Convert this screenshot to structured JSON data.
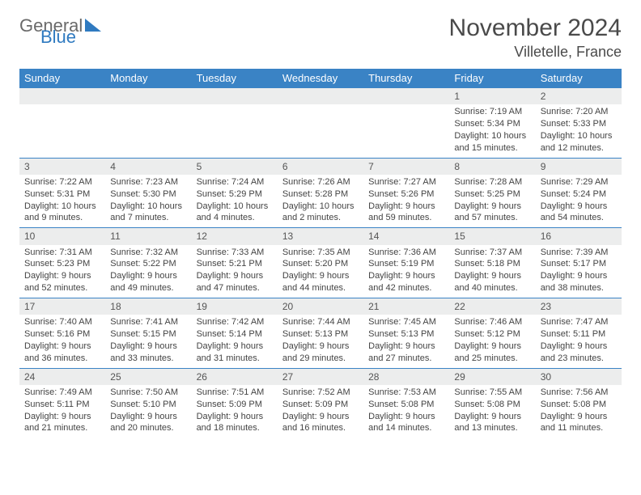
{
  "logo": {
    "general": "General",
    "blue": "Blue"
  },
  "header": {
    "title": "November 2024",
    "location": "Villetelle, France"
  },
  "colors": {
    "header_bg": "#3a83c5",
    "header_text": "#ffffff",
    "daynum_bg": "#eceded",
    "border": "#3a83c5",
    "text": "#444444",
    "logo_general": "#6a6a6a",
    "logo_blue": "#2f7ac0"
  },
  "columns": [
    "Sunday",
    "Monday",
    "Tuesday",
    "Wednesday",
    "Thursday",
    "Friday",
    "Saturday"
  ],
  "weeks": [
    [
      null,
      null,
      null,
      null,
      null,
      {
        "n": "1",
        "sr": "7:19 AM",
        "ss": "5:34 PM",
        "dl": "10 hours and 15 minutes."
      },
      {
        "n": "2",
        "sr": "7:20 AM",
        "ss": "5:33 PM",
        "dl": "10 hours and 12 minutes."
      }
    ],
    [
      {
        "n": "3",
        "sr": "7:22 AM",
        "ss": "5:31 PM",
        "dl": "10 hours and 9 minutes."
      },
      {
        "n": "4",
        "sr": "7:23 AM",
        "ss": "5:30 PM",
        "dl": "10 hours and 7 minutes."
      },
      {
        "n": "5",
        "sr": "7:24 AM",
        "ss": "5:29 PM",
        "dl": "10 hours and 4 minutes."
      },
      {
        "n": "6",
        "sr": "7:26 AM",
        "ss": "5:28 PM",
        "dl": "10 hours and 2 minutes."
      },
      {
        "n": "7",
        "sr": "7:27 AM",
        "ss": "5:26 PM",
        "dl": "9 hours and 59 minutes."
      },
      {
        "n": "8",
        "sr": "7:28 AM",
        "ss": "5:25 PM",
        "dl": "9 hours and 57 minutes."
      },
      {
        "n": "9",
        "sr": "7:29 AM",
        "ss": "5:24 PM",
        "dl": "9 hours and 54 minutes."
      }
    ],
    [
      {
        "n": "10",
        "sr": "7:31 AM",
        "ss": "5:23 PM",
        "dl": "9 hours and 52 minutes."
      },
      {
        "n": "11",
        "sr": "7:32 AM",
        "ss": "5:22 PM",
        "dl": "9 hours and 49 minutes."
      },
      {
        "n": "12",
        "sr": "7:33 AM",
        "ss": "5:21 PM",
        "dl": "9 hours and 47 minutes."
      },
      {
        "n": "13",
        "sr": "7:35 AM",
        "ss": "5:20 PM",
        "dl": "9 hours and 44 minutes."
      },
      {
        "n": "14",
        "sr": "7:36 AM",
        "ss": "5:19 PM",
        "dl": "9 hours and 42 minutes."
      },
      {
        "n": "15",
        "sr": "7:37 AM",
        "ss": "5:18 PM",
        "dl": "9 hours and 40 minutes."
      },
      {
        "n": "16",
        "sr": "7:39 AM",
        "ss": "5:17 PM",
        "dl": "9 hours and 38 minutes."
      }
    ],
    [
      {
        "n": "17",
        "sr": "7:40 AM",
        "ss": "5:16 PM",
        "dl": "9 hours and 36 minutes."
      },
      {
        "n": "18",
        "sr": "7:41 AM",
        "ss": "5:15 PM",
        "dl": "9 hours and 33 minutes."
      },
      {
        "n": "19",
        "sr": "7:42 AM",
        "ss": "5:14 PM",
        "dl": "9 hours and 31 minutes."
      },
      {
        "n": "20",
        "sr": "7:44 AM",
        "ss": "5:13 PM",
        "dl": "9 hours and 29 minutes."
      },
      {
        "n": "21",
        "sr": "7:45 AM",
        "ss": "5:13 PM",
        "dl": "9 hours and 27 minutes."
      },
      {
        "n": "22",
        "sr": "7:46 AM",
        "ss": "5:12 PM",
        "dl": "9 hours and 25 minutes."
      },
      {
        "n": "23",
        "sr": "7:47 AM",
        "ss": "5:11 PM",
        "dl": "9 hours and 23 minutes."
      }
    ],
    [
      {
        "n": "24",
        "sr": "7:49 AM",
        "ss": "5:11 PM",
        "dl": "9 hours and 21 minutes."
      },
      {
        "n": "25",
        "sr": "7:50 AM",
        "ss": "5:10 PM",
        "dl": "9 hours and 20 minutes."
      },
      {
        "n": "26",
        "sr": "7:51 AM",
        "ss": "5:09 PM",
        "dl": "9 hours and 18 minutes."
      },
      {
        "n": "27",
        "sr": "7:52 AM",
        "ss": "5:09 PM",
        "dl": "9 hours and 16 minutes."
      },
      {
        "n": "28",
        "sr": "7:53 AM",
        "ss": "5:08 PM",
        "dl": "9 hours and 14 minutes."
      },
      {
        "n": "29",
        "sr": "7:55 AM",
        "ss": "5:08 PM",
        "dl": "9 hours and 13 minutes."
      },
      {
        "n": "30",
        "sr": "7:56 AM",
        "ss": "5:08 PM",
        "dl": "9 hours and 11 minutes."
      }
    ]
  ],
  "labels": {
    "sunrise": "Sunrise: ",
    "sunset": "Sunset: ",
    "daylight": "Daylight: "
  }
}
